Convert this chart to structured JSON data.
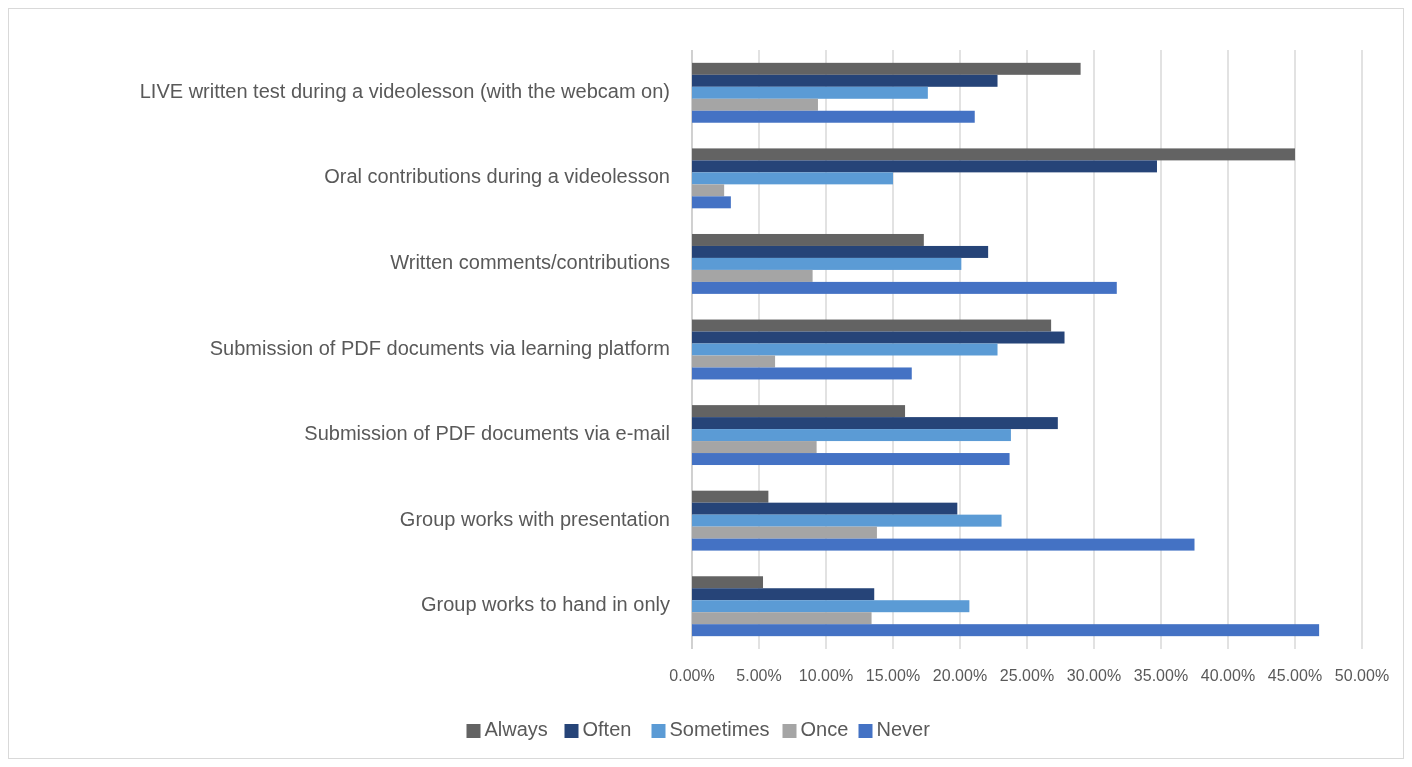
{
  "chart_data": {
    "type": "bar",
    "orientation": "horizontal",
    "categories": [
      "LIVE written test during a videolesson (with the webcam on)",
      "Oral contributions during a videolesson",
      "Written comments/contributions",
      "Submission of PDF documents via learning platform",
      "Submission of PDF documents via e-mail",
      "Group works with presentation",
      "Group works to hand in only"
    ],
    "series": [
      {
        "name": "Always",
        "color": "#636363",
        "values": [
          29.0,
          45.0,
          17.3,
          26.8,
          15.9,
          5.7,
          5.3
        ]
      },
      {
        "name": "Often",
        "color": "#264478",
        "values": [
          22.8,
          34.7,
          22.1,
          27.8,
          27.3,
          19.8,
          13.6
        ]
      },
      {
        "name": "Sometimes",
        "color": "#5b9bd5",
        "values": [
          17.6,
          15.0,
          20.1,
          22.8,
          23.8,
          23.1,
          20.7
        ]
      },
      {
        "name": "Once",
        "color": "#a5a5a5",
        "values": [
          9.4,
          2.4,
          9.0,
          6.2,
          9.3,
          13.8,
          13.4
        ]
      },
      {
        "name": "Never",
        "color": "#4472c4",
        "values": [
          21.1,
          2.9,
          31.7,
          16.4,
          23.7,
          37.5,
          46.8
        ]
      }
    ],
    "xlim": [
      0,
      50
    ],
    "xticks": [
      {
        "value": 0,
        "label": "0.00%"
      },
      {
        "value": 5,
        "label": "5.00%"
      },
      {
        "value": 10,
        "label": "10.00%"
      },
      {
        "value": 15,
        "label": "15.00%"
      },
      {
        "value": 20,
        "label": "20.00%"
      },
      {
        "value": 25,
        "label": "25.00%"
      },
      {
        "value": 30,
        "label": "30.00%"
      },
      {
        "value": 35,
        "label": "35.00%"
      },
      {
        "value": 40,
        "label": "40.00%"
      },
      {
        "value": 45,
        "label": "45.00%"
      },
      {
        "value": 50,
        "label": "50.00%"
      }
    ],
    "grid": "x",
    "legend": "bottom"
  }
}
